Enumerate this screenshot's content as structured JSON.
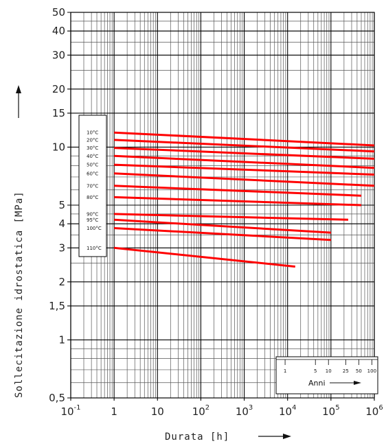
{
  "chart_data": {
    "type": "line",
    "title": "",
    "xlabel": "Durata [h]",
    "ylabel": "Sollecitazione idrostatica [MPa]",
    "x_scale": "log",
    "y_scale": "log",
    "xlim": [
      0.1,
      1000000
    ],
    "ylim": [
      0.5,
      50
    ],
    "grid": true,
    "x_ticks": [
      {
        "value": 0.1,
        "base": "10",
        "exp": "-1"
      },
      {
        "value": 1,
        "base": "1",
        "exp": ""
      },
      {
        "value": 10,
        "base": "10",
        "exp": ""
      },
      {
        "value": 100,
        "base": "10",
        "exp": "2"
      },
      {
        "value": 1000,
        "base": "10",
        "exp": "3"
      },
      {
        "value": 10000,
        "base": "10",
        "exp": "4"
      },
      {
        "value": 100000,
        "base": "10",
        "exp": "5"
      },
      {
        "value": 1000000,
        "base": "10",
        "exp": "6"
      }
    ],
    "y_ticks": [
      {
        "value": 0.5,
        "label": "0,5"
      },
      {
        "value": 1,
        "label": "1"
      },
      {
        "value": 1.5,
        "label": "1,5"
      },
      {
        "value": 2,
        "label": "2"
      },
      {
        "value": 3,
        "label": "3"
      },
      {
        "value": 4,
        "label": "4"
      },
      {
        "value": 5,
        "label": "5"
      },
      {
        "value": 10,
        "label": "10"
      },
      {
        "value": 15,
        "label": "15"
      },
      {
        "value": 20,
        "label": "20"
      },
      {
        "value": 30,
        "label": "30"
      },
      {
        "value": 40,
        "label": "40"
      },
      {
        "value": 50,
        "label": "50"
      }
    ],
    "line_color": "#ff0000",
    "legend_position": "left",
    "series": [
      {
        "name": "10°C",
        "x": [
          1,
          1000000
        ],
        "y": [
          11.9,
          10.2
        ]
      },
      {
        "name": "20°C",
        "x": [
          1,
          1000000
        ],
        "y": [
          10.9,
          9.5
        ]
      },
      {
        "name": "30°C",
        "x": [
          1,
          1000000
        ],
        "y": [
          9.9,
          8.7
        ]
      },
      {
        "name": "40°C",
        "x": [
          1,
          1000000
        ],
        "y": [
          9.0,
          7.8
        ]
      },
      {
        "name": "50°C",
        "x": [
          1,
          1000000
        ],
        "y": [
          8.1,
          7.2
        ]
      },
      {
        "name": "60°C",
        "x": [
          1,
          1000000
        ],
        "y": [
          7.3,
          6.3
        ]
      },
      {
        "name": "70°C",
        "x": [
          1,
          500000
        ],
        "y": [
          6.3,
          5.6
        ]
      },
      {
        "name": "80°C",
        "x": [
          1,
          500000
        ],
        "y": [
          5.5,
          5.0
        ]
      },
      {
        "name": "90°C",
        "x": [
          1,
          250000
        ],
        "y": [
          4.5,
          4.2
        ]
      },
      {
        "name": "95°C",
        "x": [
          1,
          100000
        ],
        "y": [
          4.2,
          3.6
        ]
      },
      {
        "name": "100°C",
        "x": [
          1,
          100000
        ],
        "y": [
          3.8,
          3.3
        ]
      },
      {
        "name": "110°C",
        "x": [
          1,
          15000
        ],
        "y": [
          3.0,
          2.4
        ]
      }
    ],
    "anni_scale": {
      "title": "Anni",
      "labels": [
        {
          "value": 1,
          "label": "1"
        },
        {
          "value": 5,
          "label": "5"
        },
        {
          "value": 10,
          "label": "10"
        },
        {
          "value": 25,
          "label": "25"
        },
        {
          "value": 50,
          "label": "50"
        },
        {
          "value": 100,
          "label": "100"
        }
      ]
    }
  }
}
